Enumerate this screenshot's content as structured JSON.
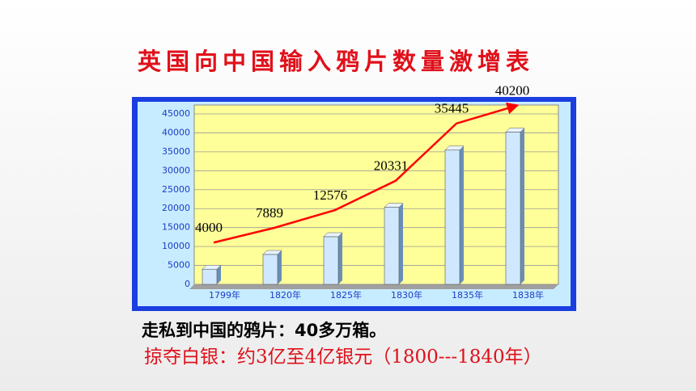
{
  "chart_data": {
    "type": "bar",
    "title": "英国向中国输入鸦片数量激增表",
    "categories": [
      "1799年",
      "1820年",
      "1825年",
      "1830年",
      "1835年",
      "1838年"
    ],
    "values": [
      4000,
      7889,
      12576,
      20331,
      35445,
      40200
    ],
    "color": "#cfe8ff",
    "line_color": "#ff0000",
    "ylim": [
      0,
      45000
    ],
    "yticks": [
      0,
      5000,
      10000,
      15000,
      20000,
      25000,
      30000,
      35000,
      40000,
      45000
    ],
    "grid": true,
    "annotations": [
      "走私到中国的鸦片：40多万箱。",
      "掠夺白银：约3亿至4亿银元（1800---1840年）"
    ]
  }
}
